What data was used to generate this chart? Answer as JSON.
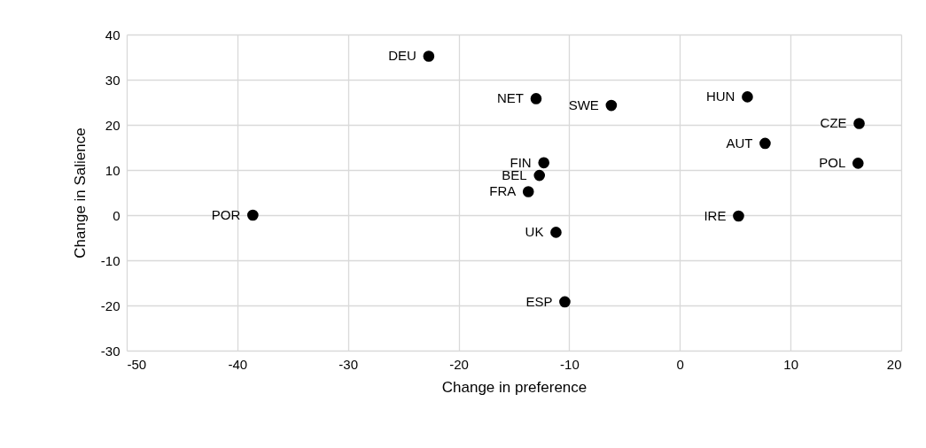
{
  "chart_data": {
    "type": "scatter",
    "xlabel": "Change in preference",
    "ylabel": "Change in Salience",
    "xlim": [
      -50,
      20
    ],
    "xticks": [
      -50,
      -40,
      -30,
      -20,
      -10,
      0,
      10,
      20
    ],
    "ylim": [
      -30,
      40
    ],
    "yticks": [
      -30,
      -20,
      -10,
      0,
      10,
      20,
      30,
      40
    ],
    "grid": true,
    "marker": "circle",
    "series": [
      {
        "name": "DEU",
        "color": "#000000",
        "x": [
          -22.7
        ],
        "values": [
          35.2
        ]
      },
      {
        "name": "NET",
        "color": "#000000",
        "x": [
          -13.0
        ],
        "values": [
          25.8
        ]
      },
      {
        "name": "SWE",
        "color": "#000000",
        "x": [
          -6.2
        ],
        "values": [
          24.3
        ]
      },
      {
        "name": "HUN",
        "color": "#000000",
        "x": [
          6.1
        ],
        "values": [
          26.2
        ]
      },
      {
        "name": "CZE",
        "color": "#000000",
        "x": [
          16.2
        ],
        "values": [
          20.3
        ]
      },
      {
        "name": "AUT",
        "color": "#000000",
        "x": [
          7.7
        ],
        "values": [
          15.9
        ]
      },
      {
        "name": "POL",
        "color": "#000000",
        "x": [
          16.1
        ],
        "values": [
          11.5
        ]
      },
      {
        "name": "FIN",
        "color": "#000000",
        "x": [
          -12.3
        ],
        "values": [
          11.6
        ]
      },
      {
        "name": "BEL",
        "color": "#000000",
        "x": [
          -12.7
        ],
        "values": [
          8.8
        ]
      },
      {
        "name": "FRA",
        "color": "#000000",
        "x": [
          -13.7
        ],
        "values": [
          5.2
        ]
      },
      {
        "name": "POR",
        "color": "#000000",
        "x": [
          -38.6
        ],
        "values": [
          0.0
        ]
      },
      {
        "name": "IRE",
        "color": "#000000",
        "x": [
          5.3
        ],
        "values": [
          -0.2
        ]
      },
      {
        "name": "UK",
        "color": "#000000",
        "x": [
          -11.2
        ],
        "values": [
          -3.8
        ]
      },
      {
        "name": "ESP",
        "color": "#000000",
        "x": [
          -10.4
        ],
        "values": [
          -19.2
        ]
      }
    ]
  }
}
